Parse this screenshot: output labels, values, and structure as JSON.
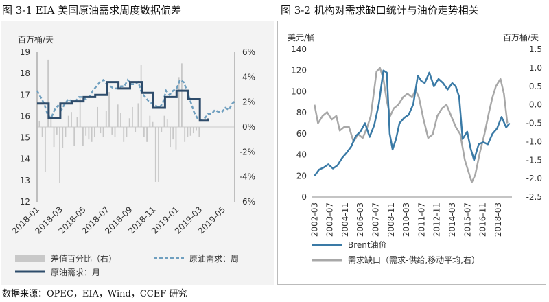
{
  "left_title": "图 3-1 EIA 美国原油需求周度数据偏差",
  "right_title": "图 3-2 机构对需求缺口统计与油价走势相关",
  "source": "数据来源：OPEC，EIA，Wind，CCEF 研究",
  "chart_data": [
    {
      "type": "bar+line",
      "title": "图 3-1 EIA 美国原油需求周度数据偏差",
      "ylabel_left": "百万桶/天",
      "ylim_left": [
        12,
        19
      ],
      "yticks_left": [
        "12",
        "13",
        "14",
        "15",
        "16",
        "17",
        "18",
        "19"
      ],
      "ylim_right": [
        -6,
        6
      ],
      "yticks_right": [
        "-6%",
        "-4%",
        "-2%",
        "0%",
        "2%",
        "4%",
        "6%"
      ],
      "xticks": [
        "2018-01",
        "2018-03",
        "2018-05",
        "2018-07",
        "2018-09",
        "2018-11",
        "2019-01",
        "2019-03",
        "2019-05"
      ],
      "x_range": [
        0,
        17
      ],
      "legend": [
        "差值百分比（右）",
        "原油需求：周",
        "原油需求：月"
      ],
      "colors": {
        "bar": "#c8c8c8",
        "weekly": "#6f9fbf",
        "monthly": "#2e4c6b"
      },
      "series": [
        {
          "name": "差值百分比（右）",
          "axis": "right",
          "style": "bar",
          "x": [
            0.2,
            0.45,
            0.7,
            0.95,
            1.2,
            1.45,
            1.7,
            1.95,
            2.2,
            2.45,
            2.7,
            2.95,
            3.2,
            3.45,
            3.7,
            3.95,
            4.2,
            4.45,
            4.7,
            4.95,
            5.2,
            5.45,
            5.7,
            5.95,
            6.2,
            6.45,
            6.7,
            6.95,
            7.2,
            7.45,
            7.7,
            7.95,
            8.2,
            8.45,
            8.7,
            8.95,
            9.2,
            9.45,
            9.7,
            9.95,
            10.2,
            10.45,
            10.7,
            10.95,
            11.2,
            11.45,
            11.7,
            11.95,
            12.2,
            12.45,
            12.7,
            12.95,
            13.2,
            13.45,
            13.7,
            13.95
          ],
          "values": [
            0.5,
            -0.8,
            -3.6,
            5.4,
            0.8,
            -1.6,
            -0.6,
            -4.5,
            -1.7,
            -0.8,
            0.9,
            1.2,
            -1.5,
            0.8,
            2.3,
            -1.5,
            -0.7,
            -1.0,
            -1.2,
            -0.8,
            1.6,
            -0.5,
            -0.8,
            1.3,
            2.8,
            -0.6,
            -0.8,
            1.8,
            1.1,
            -1.2,
            -0.8,
            0.7,
            1.6,
            -0.4,
            1.9,
            5.0,
            -0.8,
            -1.2,
            0.9,
            0.4,
            -4.4,
            -4.4,
            -0.4,
            0.9,
            0.6,
            -1.6,
            -1.0,
            -1.8,
            4.0,
            5.1,
            -1.2,
            -0.8,
            -0.7,
            -0.5,
            -0.3,
            -0.8
          ]
        },
        {
          "name": "原油需求：周",
          "axis": "left",
          "style": "dashed",
          "x": [
            0.0,
            0.3,
            0.6,
            0.9,
            1.2,
            1.5,
            1.8,
            2.1,
            2.4,
            2.7,
            3.0,
            3.3,
            3.6,
            3.9,
            4.2,
            4.5,
            4.8,
            5.1,
            5.4,
            5.7,
            6.0,
            6.3,
            6.6,
            6.9,
            7.2,
            7.5,
            7.8,
            8.1,
            8.4,
            8.7,
            9.0,
            9.3,
            9.6,
            9.9,
            10.2,
            10.5,
            10.8,
            11.1,
            11.4,
            11.7,
            12.0,
            12.3,
            12.6,
            12.9,
            13.2,
            13.5,
            13.8,
            14.1,
            14.4,
            14.7,
            15.0,
            15.3,
            15.6,
            15.9,
            16.2,
            16.5,
            16.8,
            17.0
          ],
          "values": [
            17.2,
            16.9,
            16.6,
            16.1,
            15.9,
            16.3,
            16.5,
            16.3,
            16.6,
            16.8,
            16.7,
            16.7,
            16.9,
            16.9,
            16.8,
            16.9,
            17.2,
            17.4,
            17.6,
            17.7,
            17.5,
            17.4,
            17.3,
            17.3,
            17.4,
            17.4,
            17.7,
            17.5,
            17.5,
            17.6,
            17.1,
            16.9,
            16.7,
            16.6,
            16.5,
            16.4,
            16.6,
            17.2,
            17.0,
            17.2,
            17.3,
            17.7,
            17.6,
            17.2,
            16.7,
            16.2,
            15.9,
            15.8,
            15.9,
            16.1,
            16.1,
            16.3,
            16.2,
            16.2,
            16.4,
            16.3,
            16.6,
            16.7
          ]
        },
        {
          "name": "原油需求：月",
          "axis": "left",
          "style": "step",
          "x": [
            0,
            1,
            2,
            3,
            4,
            5,
            6,
            7,
            8,
            9,
            10,
            11,
            12,
            13,
            14,
            14.7
          ],
          "values": [
            16.6,
            15.9,
            16.6,
            16.7,
            16.9,
            17.0,
            17.6,
            17.3,
            17.6,
            17.1,
            16.4,
            16.9,
            17.2,
            16.8,
            15.8,
            15.9
          ]
        }
      ]
    },
    {
      "type": "line",
      "title": "图 3-2 机构对需求缺口统计与油价走势相关",
      "ylabel_left": "美元/桶",
      "ylabel_right": "百万桶/天",
      "ylim_left": [
        0,
        140
      ],
      "yticks_left": [
        "0",
        "20",
        "40",
        "60",
        "80",
        "100",
        "120",
        "140"
      ],
      "ylim_right": [
        -2.5,
        1.5
      ],
      "yticks_right": [
        "-2.5",
        "-2.0",
        "-1.5",
        "-1.0",
        "-0.5",
        "0.0",
        "0.5",
        "1.0",
        "1.5"
      ],
      "xticks": [
        "2002-03",
        "2003-07",
        "2004-11",
        "2006-03",
        "2007-07",
        "2008-11",
        "2010-03",
        "2011-07",
        "2012-11",
        "2014-03",
        "2015-07",
        "2016-11",
        "2018-03"
      ],
      "x_range": [
        2002.0,
        2019.4
      ],
      "legend": [
        "Brent油价",
        "需求缺口（需求-供给,移动平均,右）"
      ],
      "colors": {
        "brent": "#3a7aa6",
        "gap": "#a8a8a8"
      },
      "series": [
        {
          "name": "Brent油价",
          "axis": "left",
          "x": [
            2002.2,
            2002.6,
            2003.0,
            2003.4,
            2003.8,
            2004.2,
            2004.6,
            2005.0,
            2005.4,
            2005.8,
            2006.2,
            2006.6,
            2007.0,
            2007.4,
            2007.8,
            2008.2,
            2008.5,
            2008.75,
            2009.0,
            2009.3,
            2009.6,
            2010.0,
            2010.4,
            2010.8,
            2011.2,
            2011.5,
            2011.8,
            2012.2,
            2012.6,
            2013.0,
            2013.4,
            2013.8,
            2014.2,
            2014.5,
            2014.8,
            2015.1,
            2015.5,
            2015.8,
            2016.1,
            2016.5,
            2016.9,
            2017.3,
            2017.7,
            2018.1,
            2018.5,
            2018.9,
            2019.2
          ],
          "values": [
            20,
            26,
            28,
            31,
            27,
            30,
            37,
            42,
            48,
            58,
            62,
            70,
            57,
            68,
            88,
            120,
            118,
            60,
            45,
            55,
            70,
            75,
            78,
            88,
            115,
            110,
            108,
            118,
            105,
            112,
            108,
            102,
            108,
            105,
            95,
            55,
            62,
            46,
            35,
            50,
            52,
            50,
            60,
            65,
            76,
            66,
            70
          ]
        },
        {
          "name": "需求缺口（需求-供给,移动平均,右）",
          "axis": "right",
          "x": [
            2002.2,
            2002.5,
            2002.9,
            2003.3,
            2003.7,
            2004.1,
            2004.4,
            2004.8,
            2005.2,
            2005.6,
            2006.0,
            2006.4,
            2006.8,
            2007.1,
            2007.4,
            2007.6,
            2007.9,
            2008.2,
            2008.5,
            2008.8,
            2009.1,
            2009.5,
            2009.9,
            2010.3,
            2010.7,
            2011.0,
            2011.3,
            2011.7,
            2012.1,
            2012.5,
            2012.9,
            2013.3,
            2013.7,
            2014.1,
            2014.5,
            2014.9,
            2015.3,
            2015.6,
            2015.9,
            2016.2,
            2016.6,
            2017.0,
            2017.4,
            2017.7,
            2018.0,
            2018.4,
            2018.7,
            2019.0
          ],
          "values": [
            0.0,
            -0.5,
            -0.3,
            -0.2,
            -0.4,
            -0.3,
            -0.7,
            -0.6,
            -0.6,
            -1.0,
            -0.8,
            -0.9,
            -0.6,
            -0.3,
            0.4,
            0.9,
            1.0,
            0.7,
            0.1,
            -0.3,
            -0.1,
            0.0,
            0.2,
            0.3,
            0.2,
            0.4,
            0.2,
            -0.4,
            -0.9,
            -0.8,
            -0.3,
            -0.1,
            0.0,
            -0.3,
            -0.6,
            -0.8,
            -1.5,
            -1.8,
            -2.1,
            -1.9,
            -1.3,
            -0.8,
            -0.2,
            0.2,
            0.5,
            0.7,
            0.3,
            -0.5
          ]
        }
      ]
    }
  ]
}
